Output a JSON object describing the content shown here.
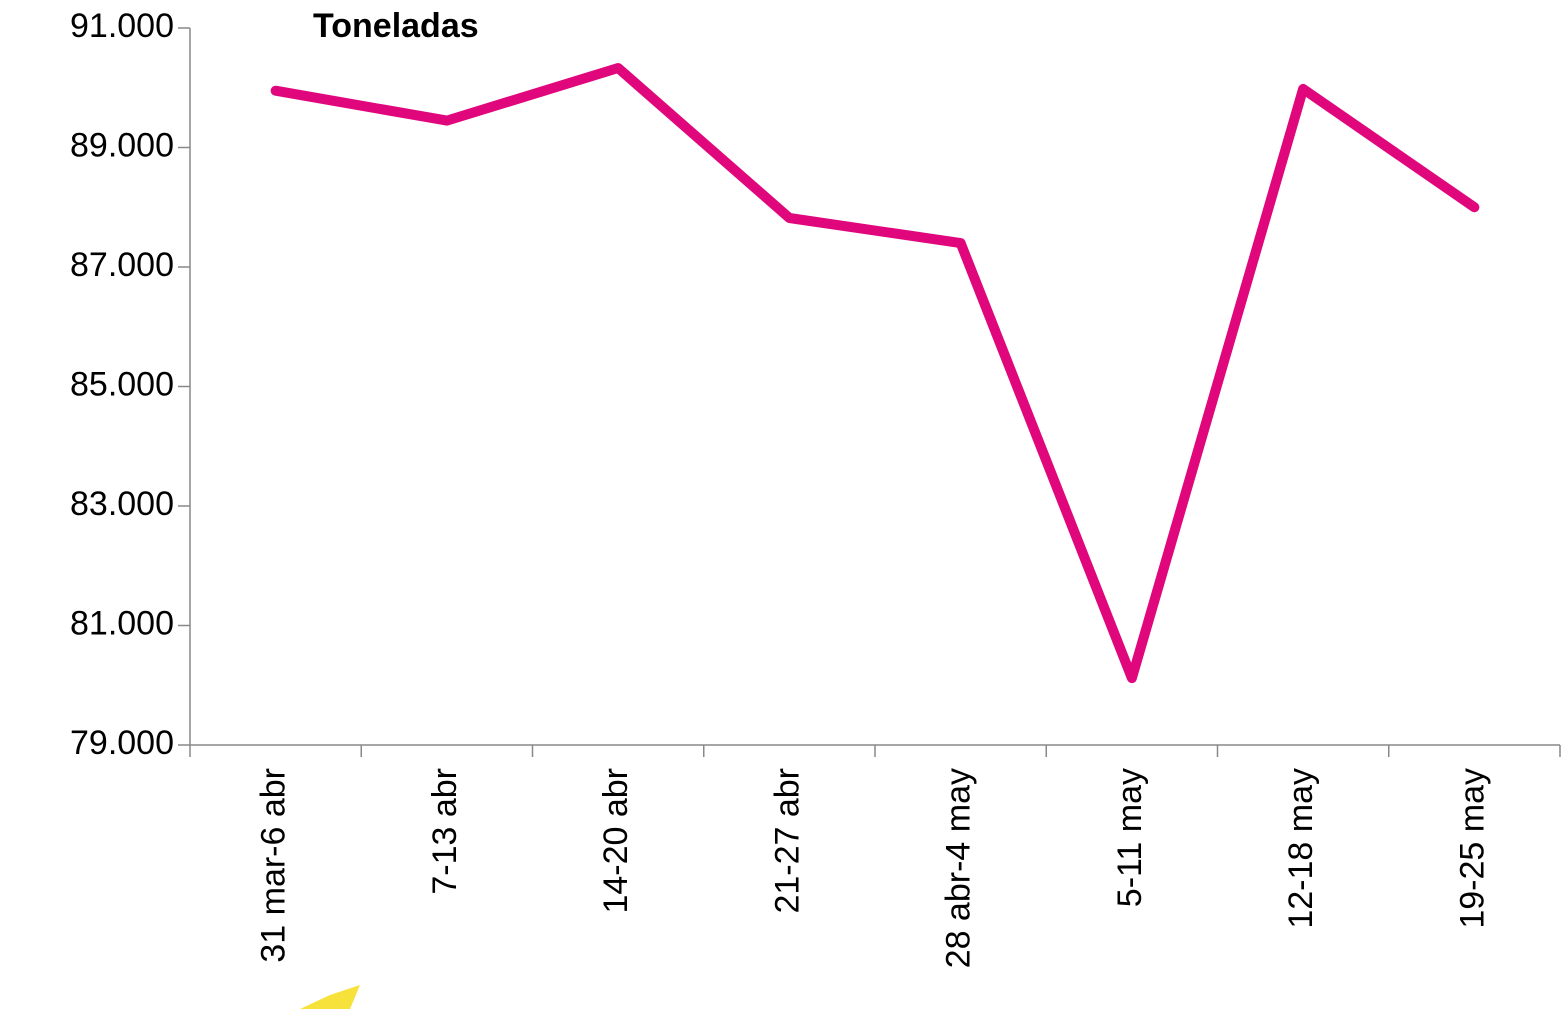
{
  "chart_data": {
    "type": "line",
    "title": "Toneladas",
    "categories": [
      "31 mar-6 abr",
      "7-13 abr",
      "14-20 abr",
      "21-27 abr",
      "28 abr-4 may",
      "5-11 may",
      "12-18 may",
      "19-25 may"
    ],
    "series": [
      {
        "name": "Toneladas",
        "color": "#e0077d",
        "values": [
          89950,
          89450,
          90330,
          87820,
          87400,
          80120,
          89980,
          88000
        ]
      }
    ],
    "ylim": [
      79000,
      91000
    ],
    "yticks": [
      {
        "value": 79000,
        "label": "79.000"
      },
      {
        "value": 81000,
        "label": "81.000"
      },
      {
        "value": 83000,
        "label": "83.000"
      },
      {
        "value": 85000,
        "label": "85.000"
      },
      {
        "value": 87000,
        "label": "87.000"
      },
      {
        "value": 89000,
        "label": "89.000"
      },
      {
        "value": 91000,
        "label": "91.000"
      }
    ],
    "grid": false
  }
}
